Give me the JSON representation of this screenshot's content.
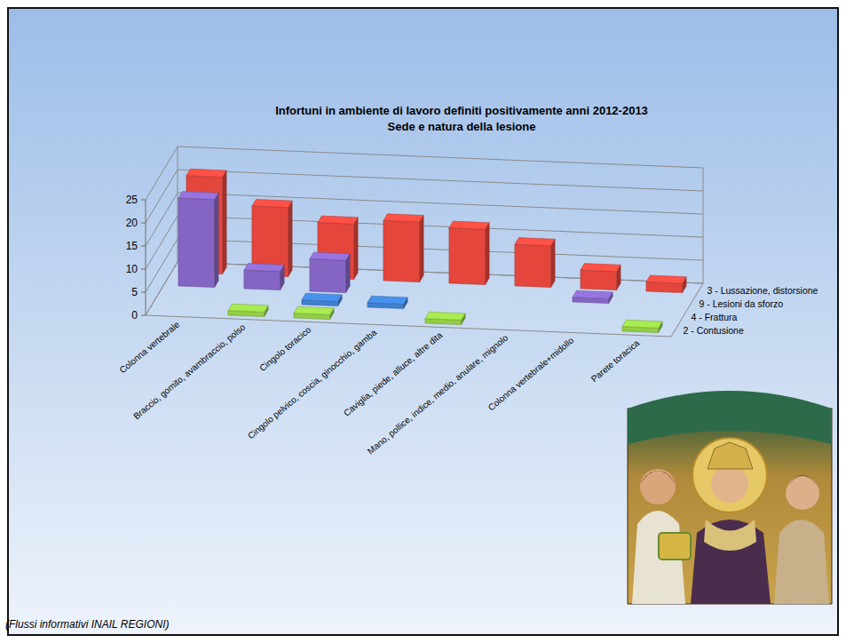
{
  "chart_data": {
    "type": "bar",
    "title": "Infortuni in ambiente di lavoro definiti positivamente anni 2012-2013",
    "subtitle": "Sede e natura della lesione",
    "categories": [
      "Colonna vertebrale",
      "Braccio, gomito, avambraccio, polso",
      "Cingolo toracico",
      "Cingolo pelvico, coscia, ginocchio, gamba",
      "Caviglia, piede, alluce, altre dita",
      "Mano, pollice, indice, medio, anulare, mignolo",
      "Colonna vertebrale+midollo",
      "Parete toracica"
    ],
    "series": [
      {
        "name": "2 - Contusione",
        "color": "#92cd45",
        "values": [
          0,
          1,
          1,
          0,
          1,
          0,
          0,
          1
        ]
      },
      {
        "name": "4 - Frattura",
        "color": "#3f7fd0",
        "values": [
          0,
          0,
          1,
          1,
          0,
          0,
          0,
          0
        ]
      },
      {
        "name": "9 - Lesioni da sforzo",
        "color": "#8465c4",
        "values": [
          19,
          4,
          7,
          0,
          0,
          0,
          1,
          0
        ]
      },
      {
        "name": "3 - Lussazione, distorsione",
        "color": "#e4463c",
        "values": [
          21,
          15,
          12,
          13,
          12,
          9,
          4,
          2
        ]
      }
    ],
    "ylim": [
      0,
      25
    ],
    "yticks": [
      0,
      5,
      10,
      15,
      20,
      25
    ],
    "grid": true,
    "source": "(Flussi informativi INAIL REGIONI)"
  }
}
